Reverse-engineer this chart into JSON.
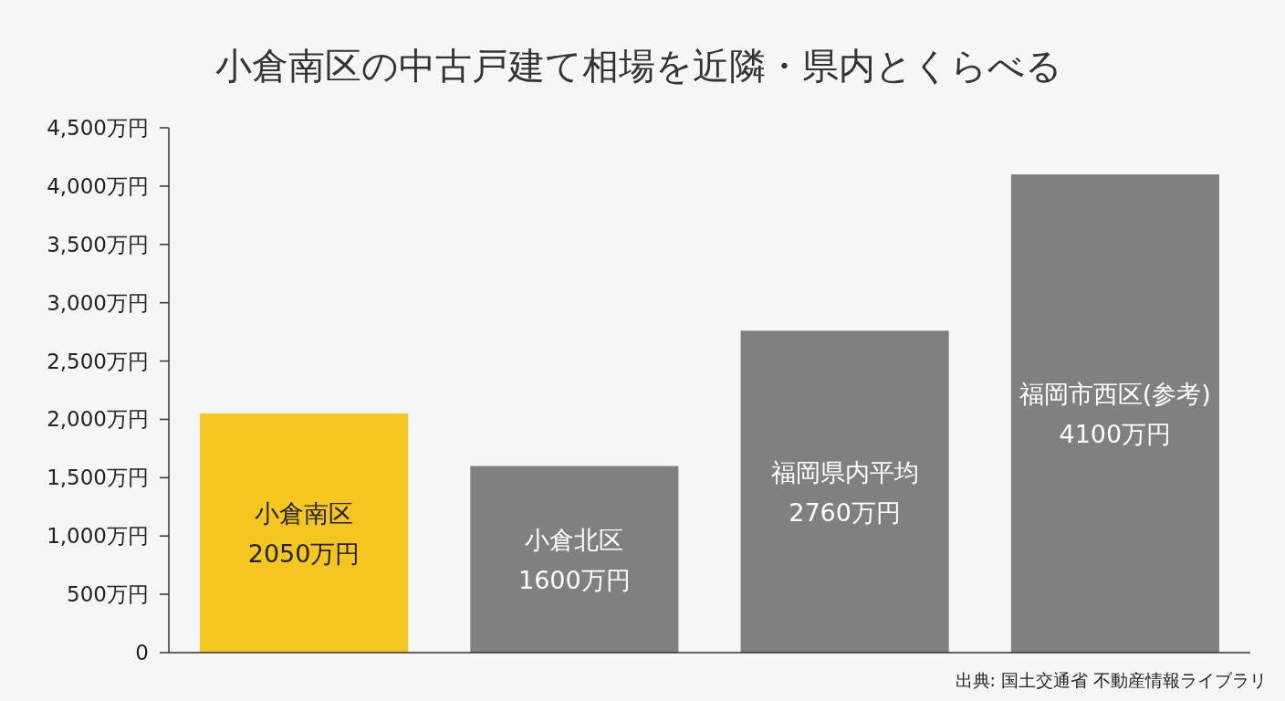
{
  "chart_data": {
    "type": "bar",
    "title": "小倉南区の中古戸建て相場を近隣・県内とくらべる",
    "categories": [
      "小倉南区",
      "小倉北区",
      "福岡県内平均",
      "福岡市西区(参考)"
    ],
    "values": [
      2050,
      1600,
      2760,
      4100
    ],
    "colors": [
      "#f4c61f",
      "#808080",
      "#808080",
      "#808080"
    ],
    "value_labels": [
      "2050万円",
      "1600万円",
      "2760万円",
      "4100万円"
    ],
    "ylim": [
      0,
      4500
    ],
    "yticks": [
      {
        "value": 0,
        "label": "0"
      },
      {
        "value": 500,
        "label": "500万円"
      },
      {
        "value": 1000,
        "label": "1,000万円"
      },
      {
        "value": 1500,
        "label": "1,500万円"
      },
      {
        "value": 2000,
        "label": "2,000万円"
      },
      {
        "value": 2500,
        "label": "2,500万円"
      },
      {
        "value": 3000,
        "label": "3,000万円"
      },
      {
        "value": 3500,
        "label": "3,500万円"
      },
      {
        "value": 4000,
        "label": "4,000万円"
      },
      {
        "value": 4500,
        "label": "4,500万円"
      }
    ],
    "grid": false,
    "annotations": [
      "出典: 国土交通省 不動産情報ライブラリ"
    ]
  }
}
